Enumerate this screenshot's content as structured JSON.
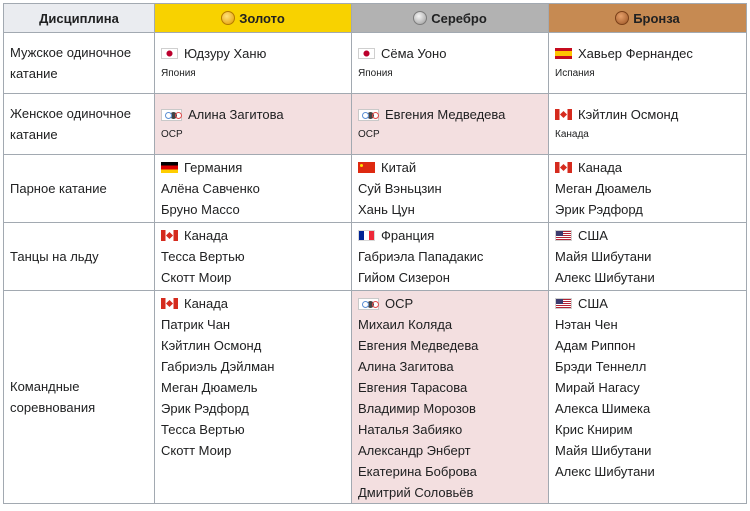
{
  "header": {
    "discipline": "Дисциплина",
    "gold": "Золото",
    "silver": "Серебро",
    "bronze": "Бронза"
  },
  "rows": [
    {
      "discipline": [
        "Мужское одиночное",
        "катание"
      ],
      "gold": {
        "flag": "japan-flag",
        "name": "Юдзуру Ханю",
        "country": "Япония"
      },
      "silver": {
        "flag": "japan-flag",
        "name": "Сёма Уоно",
        "country": "Япония"
      },
      "bronze": {
        "flag": "spain-flag",
        "name": "Хавьер Фернандес",
        "country": "Испания"
      }
    },
    {
      "discipline": [
        "Женское одиночное",
        "катание"
      ],
      "gold": {
        "flag": "olympic-flag",
        "name": "Алина Загитова",
        "country": "OCP"
      },
      "silver": {
        "flag": "olympic-flag",
        "name": "Евгения Медведева",
        "country": "OCP"
      },
      "bronze": {
        "flag": "canada-flag",
        "name": "Кэйтлин Осмонд",
        "country": "Канада"
      }
    },
    {
      "discipline": [
        "Парное катание"
      ],
      "gold": {
        "flag": "germany-flag",
        "team": "Германия",
        "members": [
          "Алёна Савченко",
          "Бруно Массо"
        ]
      },
      "silver": {
        "flag": "china-flag",
        "team": "Китай",
        "members": [
          "Суй Вэньцзин",
          "Хань Цун"
        ]
      },
      "bronze": {
        "flag": "canada-flag",
        "team": "Канада",
        "members": [
          "Меган Дюамель",
          "Эрик Рэдфорд"
        ]
      }
    },
    {
      "discipline": [
        "Танцы на льду"
      ],
      "gold": {
        "flag": "canada-flag",
        "team": "Канада",
        "members": [
          "Тесса Вертью",
          "Скотт Моир"
        ]
      },
      "silver": {
        "flag": "france-flag",
        "team": "Франция",
        "members": [
          "Габриэла Пападакис",
          "Гийом Сизерон"
        ]
      },
      "bronze": {
        "flag": "usa-flag",
        "team": "США",
        "members": [
          "Майя Шибутани",
          "Алекс Шибутани"
        ]
      }
    },
    {
      "discipline": [
        "Командные",
        "соревнования"
      ],
      "gold": {
        "flag": "canada-flag",
        "team": "Канада",
        "members": [
          "Патрик Чан",
          "Кэйтлин Осмонд",
          "Габриэль Дэйлман",
          "Меган Дюамель",
          "Эрик Рэдфорд",
          "Тесса Вертью",
          "Скотт Моир"
        ]
      },
      "silver": {
        "flag": "olympic-flag",
        "team": "OCP",
        "members": [
          "Михаил Коляда",
          "Евгения Медведева",
          "Алина Загитова",
          "Евгения Тарасова",
          "Владимир Морозов",
          "Наталья Забияко",
          "Александр Энберт",
          "Екатерина Боброва",
          "Дмитрий Соловьёв"
        ]
      },
      "bronze": {
        "flag": "usa-flag",
        "team": "США",
        "members": [
          "Нэтан Чен",
          "Адам Риппон",
          "Брэди Теннелл",
          "Мирай Нагасу",
          "Алекса Шимека",
          "Крис Книрим",
          "Майя Шибутани",
          "Алекс Шибутани"
        ]
      }
    }
  ]
}
